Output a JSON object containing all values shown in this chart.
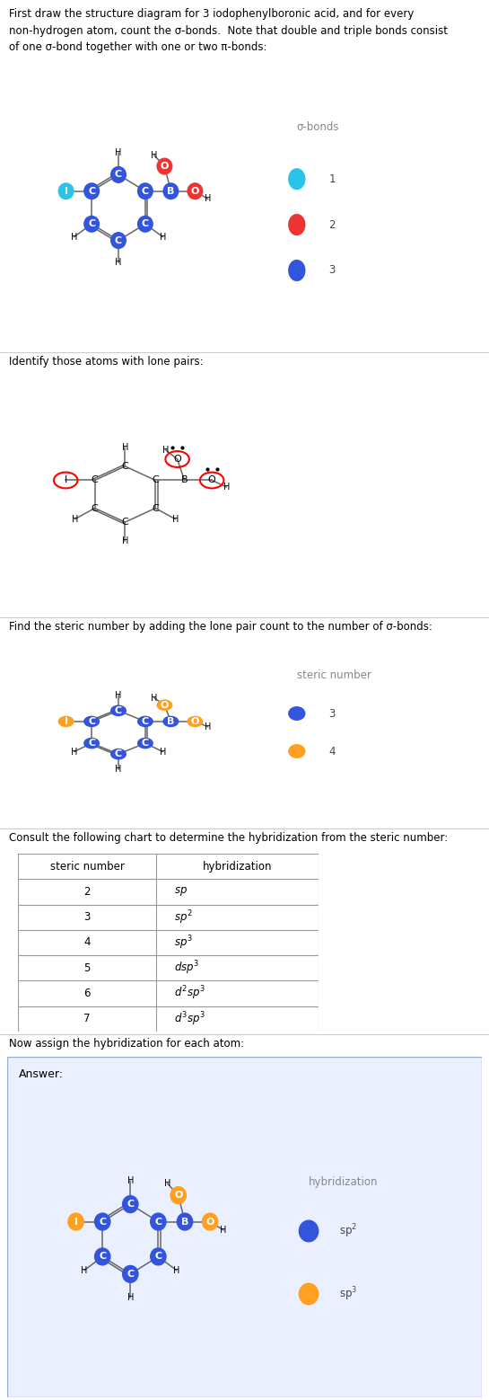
{
  "title_section1": "First draw the structure diagram for 3 iodophenylboronic acid, and for every\nnon-hydrogen atom, count the σ-bonds.  Note that double and triple bonds consist\nof one σ-bond together with one or two π-bonds:",
  "title_section2": "Identify those atoms with lone pairs:",
  "title_section3": "Find the steric number by adding the lone pair count to the number of σ-bonds:",
  "title_section4": "Consult the following chart to determine the hybridization from the steric number:",
  "title_section5": "Now assign the hybridization for each atom:",
  "answer_label": "Answer:",
  "table_headers": [
    "steric number",
    "hybridization"
  ],
  "table_rows": [
    "2",
    "3",
    "4",
    "5",
    "6",
    "7"
  ],
  "hyb_labels": [
    "sp",
    "sp$^2$",
    "sp$^3$",
    "dsp$^3$",
    "d$^2$sp$^3$",
    "d$^3$sp$^3$"
  ],
  "legend1_title": "σ-bonds",
  "legend1_items": [
    {
      "label": "1",
      "color": "#29C4E8"
    },
    {
      "label": "2",
      "color": "#EE3333"
    },
    {
      "label": "3",
      "color": "#3355DD"
    }
  ],
  "legend3_title": "steric number",
  "legend3_items": [
    {
      "label": "3",
      "color": "#3355DD"
    },
    {
      "label": "4",
      "color": "#FFA020"
    }
  ],
  "legend5_title": "hybridization",
  "legend5_items": [
    {
      "label": "sp$^2$",
      "color": "#3355DD"
    },
    {
      "label": "sp$^3$",
      "color": "#FFA020"
    }
  ],
  "bg_answer": "#EAF0FF",
  "color_cyan": "#29C4E8",
  "color_red": "#EE3333",
  "color_blue": "#3355DD",
  "color_orange": "#FFA020",
  "color_gray": "#888888"
}
